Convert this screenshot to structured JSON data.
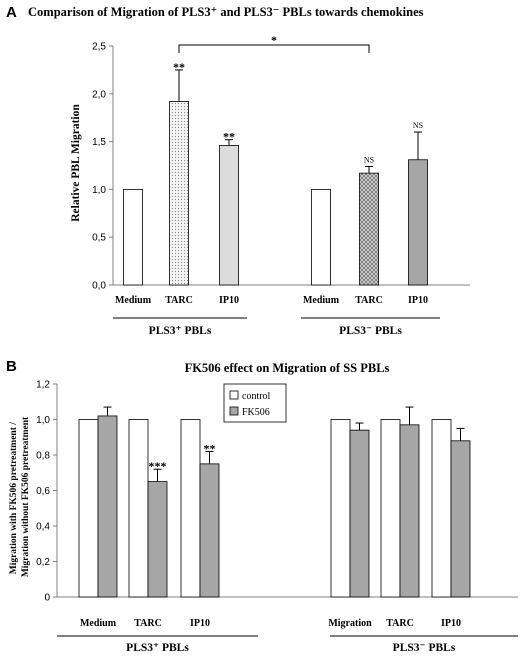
{
  "chart_data": [
    {
      "panel": "A",
      "type": "bar",
      "title": "Comparison of Migration of PLS3⁺ and PLS3⁻ PBLs towards chemokines",
      "ylabel": "Relative PBL Migration",
      "ylim": [
        0,
        2.5
      ],
      "yticks": [
        "0,0",
        "0,5",
        "1,0",
        "1,5",
        "2,0",
        "2,5"
      ],
      "categories": [
        "Medium",
        "TARC",
        "IP10",
        "Medium",
        "TARC",
        "IP10"
      ],
      "values": [
        1.0,
        1.92,
        1.46,
        1.0,
        1.17,
        1.31
      ],
      "errors": [
        0,
        0.33,
        0.06,
        0,
        0.07,
        0.29
      ],
      "fills": [
        "white",
        "dots",
        "lightgray",
        "white",
        "crosshatch",
        "gray"
      ],
      "annotations": [
        "",
        "**",
        "**",
        "",
        "NS",
        "NS"
      ],
      "groups": [
        {
          "label": "PLS3⁺ PBLs",
          "categories": [
            0,
            1,
            2
          ]
        },
        {
          "label": "PLS3⁻ PBLs",
          "categories": [
            3,
            4,
            5
          ]
        }
      ],
      "bracket": {
        "from": 1,
        "to": 4,
        "label": "*"
      }
    },
    {
      "panel": "B",
      "type": "bar",
      "title": "FK506 effect on Migration of SS PBLs",
      "ylabel": "Migration with FK506 pretreatment / Migration without FK506 pretreatment",
      "ylim": [
        0,
        1.2
      ],
      "yticks": [
        "0",
        "0,2",
        "0,4",
        "0,6",
        "0,8",
        "1,0",
        "1,2"
      ],
      "categories": [
        "Medium",
        "TARC",
        "IP10",
        "Migration",
        "TARC",
        "IP10"
      ],
      "series": [
        {
          "name": "control",
          "values": [
            1.0,
            1.0,
            1.0,
            1.0,
            1.0,
            1.0
          ],
          "errors": [
            0,
            0,
            0,
            0,
            0,
            0
          ],
          "color": "#ffffff"
        },
        {
          "name": "FK506",
          "values": [
            1.02,
            0.65,
            0.75,
            0.94,
            0.97,
            0.88
          ],
          "errors": [
            0.05,
            0.07,
            0.07,
            0.04,
            0.1,
            0.07
          ],
          "color": "#a6a6a6"
        }
      ],
      "annotations": [
        "",
        "***",
        "**",
        "",
        "",
        ""
      ],
      "groups": [
        {
          "label": "PLS3⁺ PBLs",
          "categories": [
            0,
            1,
            2
          ]
        },
        {
          "label": "PLS3⁻ PBLs",
          "categories": [
            3,
            4,
            5
          ]
        }
      ],
      "legend_position": "top-center"
    }
  ]
}
